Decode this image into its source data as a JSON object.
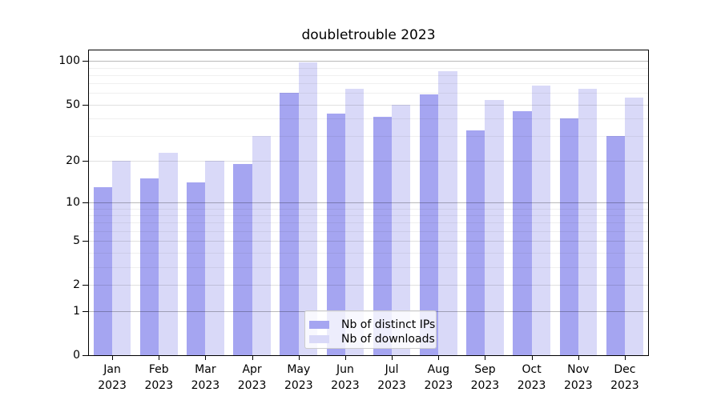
{
  "title": "doubletrouble 2023",
  "chart_data": {
    "type": "bar",
    "title": "doubletrouble 2023",
    "categories": [
      "Jan",
      "Feb",
      "Mar",
      "Apr",
      "May",
      "Jun",
      "Jul",
      "Aug",
      "Sep",
      "Oct",
      "Nov",
      "Dec"
    ],
    "xtick_year": "2023",
    "series": [
      {
        "name": "Nb of distinct IPs",
        "color": "#a5a5f1",
        "values": [
          13,
          15,
          14,
          19,
          60,
          43,
          41,
          59,
          33,
          45,
          40,
          30
        ]
      },
      {
        "name": "Nb of downloads",
        "color": "#d9d9f8",
        "values": [
          20,
          23,
          20,
          30,
          98,
          64,
          50,
          85,
          54,
          68,
          64,
          56
        ]
      }
    ],
    "yscale": "log1p",
    "ylim": [
      0,
      120
    ],
    "yticks": [
      0,
      1,
      2,
      5,
      10,
      20,
      50,
      100
    ],
    "yticks_power": [
      1,
      10,
      100
    ],
    "yticks_minor": [
      3,
      4,
      6,
      7,
      8,
      9,
      30,
      40,
      60,
      70,
      80,
      90
    ],
    "grid": true,
    "legend_position": "lower center"
  }
}
